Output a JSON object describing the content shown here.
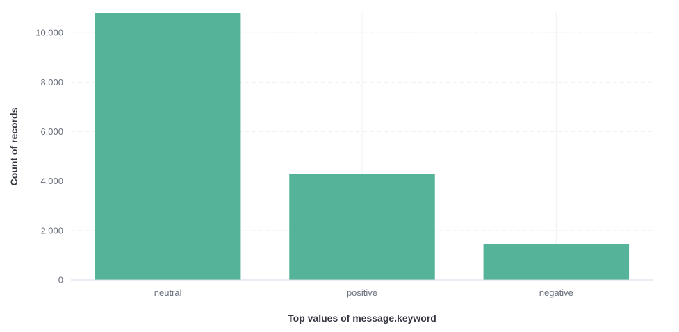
{
  "chart_data": {
    "type": "bar",
    "categories": [
      "neutral",
      "positive",
      "negative"
    ],
    "values": [
      10820,
      4280,
      1440
    ],
    "title": "",
    "xlabel": "Top values of message.keyword",
    "ylabel": "Count of records",
    "ylim": [
      0,
      10820
    ],
    "yticks": [
      0,
      2000,
      4000,
      6000,
      8000,
      10000
    ],
    "ytick_labels": [
      "0",
      "2,000",
      "4,000",
      "6,000",
      "8,000",
      "10,000"
    ],
    "grid": true,
    "legend": "none",
    "bar_color": "#54b399"
  }
}
